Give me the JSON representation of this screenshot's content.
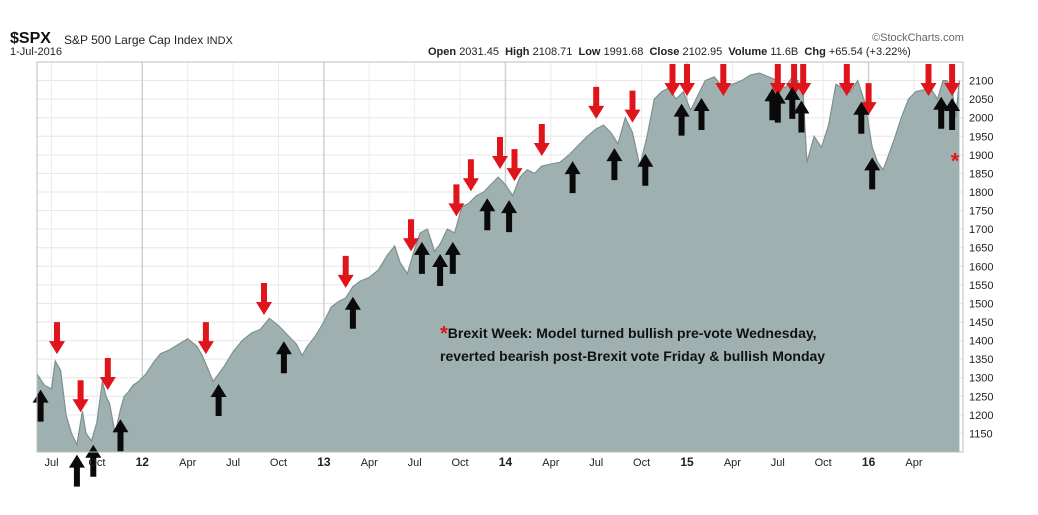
{
  "header": {
    "ticker": "$SPX",
    "name": "S&P 500 Large Cap Index",
    "exchange": "INDX",
    "date": "1-Jul-2016",
    "logo": "©StockCharts.com",
    "open_label": "Open",
    "open_value": "2031.45",
    "high_label": "High",
    "high_value": "2108.71",
    "low_label": "Low",
    "low_value": "1991.68",
    "close_label": "Close",
    "close_value": "2102.95",
    "volume_label": "Volume",
    "volume_value": "11.6B",
    "chg_label": "Chg",
    "chg_value": "+65.54 (+3.22%)"
  },
  "annotation": {
    "star": "*",
    "line1": "Brexit Week: Model turned bullish pre-vote Wednesday,",
    "line2": "reverted bearish post-Brexit vote Friday & bullish Monday"
  },
  "colors": {
    "area": "#9fb0b0",
    "line": "#7f9090",
    "red_arrow": "#e0141b",
    "black_arrow": "#0a0a0a"
  },
  "chart_data": {
    "type": "area",
    "ylim": [
      1100,
      2150
    ],
    "yticks": [
      1150,
      1200,
      1250,
      1300,
      1350,
      1400,
      1450,
      1500,
      1550,
      1600,
      1650,
      1700,
      1750,
      1800,
      1850,
      1900,
      1950,
      2000,
      2050,
      2100
    ],
    "xlim": [
      2011.42,
      2016.52
    ],
    "xticks": [
      {
        "t": 2011.5,
        "label": "Jul",
        "major": false
      },
      {
        "t": 2011.75,
        "label": "Oct",
        "major": false
      },
      {
        "t": 2012.0,
        "label": "12",
        "major": true
      },
      {
        "t": 2012.25,
        "label": "Apr",
        "major": false
      },
      {
        "t": 2012.5,
        "label": "Jul",
        "major": false
      },
      {
        "t": 2012.75,
        "label": "Oct",
        "major": false
      },
      {
        "t": 2013.0,
        "label": "13",
        "major": true
      },
      {
        "t": 2013.25,
        "label": "Apr",
        "major": false
      },
      {
        "t": 2013.5,
        "label": "Jul",
        "major": false
      },
      {
        "t": 2013.75,
        "label": "Oct",
        "major": false
      },
      {
        "t": 2014.0,
        "label": "14",
        "major": true
      },
      {
        "t": 2014.25,
        "label": "Apr",
        "major": false
      },
      {
        "t": 2014.5,
        "label": "Jul",
        "major": false
      },
      {
        "t": 2014.75,
        "label": "Oct",
        "major": false
      },
      {
        "t": 2015.0,
        "label": "15",
        "major": true
      },
      {
        "t": 2015.25,
        "label": "Apr",
        "major": false
      },
      {
        "t": 2015.5,
        "label": "Jul",
        "major": false
      },
      {
        "t": 2015.75,
        "label": "Oct",
        "major": false
      },
      {
        "t": 2016.0,
        "label": "16",
        "major": true
      },
      {
        "t": 2016.25,
        "label": "Apr",
        "major": false
      }
    ],
    "series": [
      {
        "x": [
          2011.42,
          2011.46,
          2011.5,
          2011.52,
          2011.55,
          2011.58,
          2011.61,
          2011.64,
          2011.67,
          2011.69,
          2011.72,
          2011.75,
          2011.78,
          2011.8,
          2011.82,
          2011.85,
          2011.88,
          2011.9,
          2011.92,
          2011.95,
          2011.98,
          2012.02,
          2012.06,
          2012.1,
          2012.15,
          2012.2,
          2012.25,
          2012.3,
          2012.33,
          2012.36,
          2012.39,
          2012.42,
          2012.45,
          2012.5,
          2012.55,
          2012.6,
          2012.65,
          2012.7,
          2012.75,
          2012.8,
          2012.85,
          2012.88,
          2012.91,
          2012.95,
          2013.0,
          2013.04,
          2013.08,
          2013.12,
          2013.16,
          2013.2,
          2013.25,
          2013.3,
          2013.35,
          2013.39,
          2013.42,
          2013.46,
          2013.49,
          2013.53,
          2013.57,
          2013.61,
          2013.64,
          2013.68,
          2013.72,
          2013.76,
          2013.8,
          2013.84,
          2013.88,
          2013.92,
          2013.96,
          2014.0,
          2014.04,
          2014.08,
          2014.12,
          2014.16,
          2014.2,
          2014.25,
          2014.3,
          2014.35,
          2014.4,
          2014.45,
          2014.5,
          2014.54,
          2014.58,
          2014.62,
          2014.66,
          2014.7,
          2014.74,
          2014.78,
          2014.82,
          2014.86,
          2014.9,
          2014.94,
          2014.98,
          2015.02,
          2015.06,
          2015.1,
          2015.15,
          2015.2,
          2015.25,
          2015.3,
          2015.35,
          2015.4,
          2015.45,
          2015.5,
          2015.54,
          2015.58,
          2015.61,
          2015.64,
          2015.66,
          2015.7,
          2015.74,
          2015.78,
          2015.82,
          2015.86,
          2015.9,
          2015.94,
          2015.98,
          2016.02,
          2016.05,
          2016.08,
          2016.11,
          2016.14,
          2016.18,
          2016.22,
          2016.26,
          2016.3,
          2016.34,
          2016.38,
          2016.41,
          2016.43,
          2016.46,
          2016.48,
          2016.5
        ],
        "values": [
          1310,
          1280,
          1270,
          1345,
          1320,
          1200,
          1150,
          1120,
          1210,
          1150,
          1130,
          1180,
          1290,
          1250,
          1230,
          1150,
          1215,
          1250,
          1260,
          1280,
          1290,
          1310,
          1340,
          1365,
          1375,
          1390,
          1405,
          1385,
          1360,
          1325,
          1290,
          1310,
          1330,
          1370,
          1400,
          1420,
          1430,
          1460,
          1440,
          1415,
          1390,
          1360,
          1385,
          1410,
          1450,
          1490,
          1505,
          1515,
          1545,
          1560,
          1570,
          1590,
          1630,
          1655,
          1610,
          1580,
          1630,
          1690,
          1700,
          1640,
          1660,
          1700,
          1690,
          1760,
          1770,
          1790,
          1800,
          1820,
          1840,
          1820,
          1790,
          1840,
          1860,
          1850,
          1870,
          1875,
          1880,
          1900,
          1925,
          1950,
          1970,
          1980,
          1960,
          1930,
          2000,
          1960,
          1870,
          1950,
          2050,
          2070,
          2080,
          2050,
          2070,
          2020,
          2060,
          2100,
          2110,
          2080,
          2090,
          2100,
          2115,
          2120,
          2110,
          2100,
          2080,
          2110,
          2100,
          2060,
          1880,
          1950,
          1920,
          1980,
          2090,
          2080,
          2070,
          2100,
          2040,
          1920,
          1880,
          1860,
          1900,
          1940,
          2000,
          2050,
          2070,
          2075,
          2080,
          2050,
          2100,
          2100,
          2080,
          2000,
          2100
        ]
      }
    ],
    "signals": {
      "red": [
        2011.53,
        2011.66,
        2011.81,
        2012.35,
        2012.67,
        2013.12,
        2013.48,
        2013.73,
        2013.81,
        2013.97,
        2014.05,
        2014.2,
        2014.5,
        2014.7,
        2014.92,
        2015.0,
        2015.2,
        2015.5,
        2015.59,
        2015.64,
        2015.88,
        2016.0,
        2016.33,
        2016.46
      ],
      "black": [
        2011.44,
        2011.64,
        2011.73,
        2011.88,
        2012.42,
        2012.78,
        2013.16,
        2013.54,
        2013.64,
        2013.71,
        2013.9,
        2014.02,
        2014.37,
        2014.6,
        2014.77,
        2014.97,
        2015.08,
        2015.47,
        2015.5,
        2015.58,
        2015.63,
        2015.96,
        2016.02,
        2016.4,
        2016.46
      ]
    },
    "brexit_marker": {
      "x": 2016.48,
      "y": 1880
    }
  }
}
